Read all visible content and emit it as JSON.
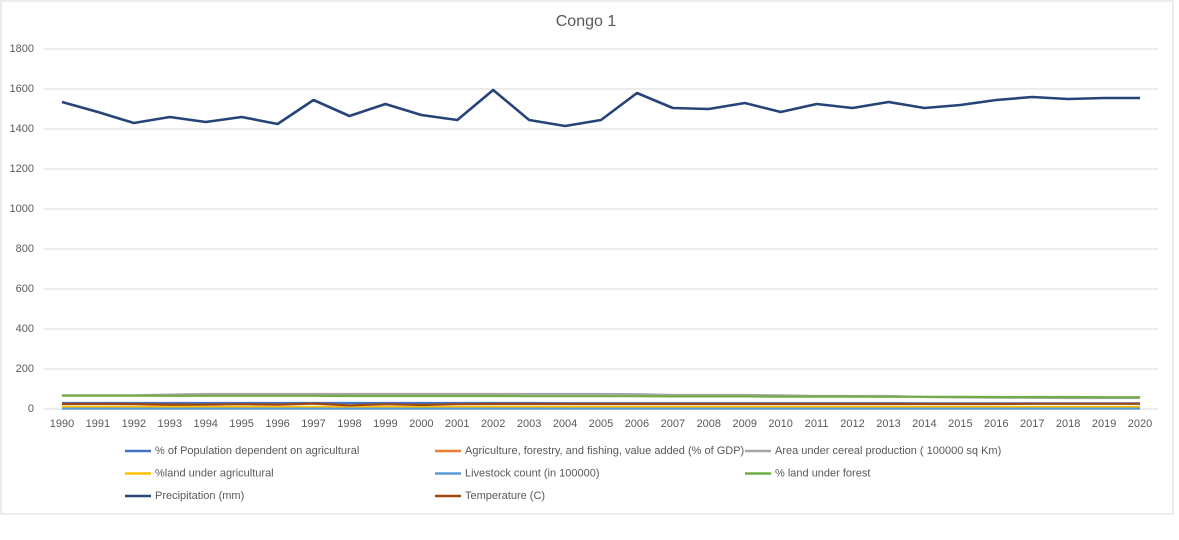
{
  "chart_data": {
    "type": "line",
    "title": "Congo 1",
    "categories": [
      "1990",
      "1991",
      "1992",
      "1993",
      "1994",
      "1995",
      "1996",
      "1997",
      "1998",
      "1999",
      "2000",
      "2001",
      "2002",
      "2003",
      "2004",
      "2005",
      "2006",
      "2007",
      "2008",
      "2009",
      "2010",
      "2011",
      "2012",
      "2013",
      "2014",
      "2015",
      "2016",
      "2017",
      "2018",
      "2019",
      "2020"
    ],
    "ylim": [
      0,
      1800
    ],
    "yticks": [
      0,
      200,
      400,
      600,
      800,
      1000,
      1200,
      1400,
      1600,
      1800
    ],
    "grid": true,
    "series": [
      {
        "name": "% of Population dependent on agricultural",
        "color": "#4472c4",
        "values": [
          30,
          30,
          30,
          30,
          30,
          30,
          30,
          30,
          30,
          30,
          30,
          30,
          30,
          30,
          29,
          29,
          29,
          29,
          29,
          29,
          29,
          29,
          29,
          29,
          28,
          28,
          28,
          28,
          28,
          28,
          28
        ]
      },
      {
        "name": "Agriculture, forestry, and fishing, value added (% of GDP)",
        "color": "#ed7d31",
        "values": [
          10,
          9,
          11,
          12,
          10,
          9,
          10,
          8,
          9,
          10,
          6,
          5,
          5,
          6,
          5,
          5,
          5,
          5,
          5,
          5,
          5,
          6,
          6,
          6,
          7,
          8,
          8,
          9,
          9,
          9,
          10
        ]
      },
      {
        "name": "Area under cereal production ( 100000 sq Km)",
        "color": "#a5a5a5",
        "values": [
          68,
          68,
          68,
          72,
          75,
          75,
          75,
          75,
          75,
          75,
          75,
          75,
          75,
          75,
          75,
          75,
          74,
          70,
          70,
          70,
          68,
          65,
          65,
          65,
          60,
          58,
          57,
          56,
          55,
          55,
          55
        ]
      },
      {
        "name": "%land under agricultural",
        "color": "#ffc000",
        "values": [
          10,
          10,
          10,
          10,
          10,
          10,
          10,
          10,
          10,
          10,
          10,
          10,
          10,
          10,
          10,
          10,
          10,
          10,
          10,
          10,
          10,
          10,
          10,
          10,
          10,
          10,
          10,
          10,
          10,
          10,
          10
        ]
      },
      {
        "name": "Livestock count (in 100000)",
        "color": "#5b9bd5",
        "values": [
          2,
          2,
          2,
          2,
          2,
          2,
          2,
          2,
          2,
          2,
          2,
          2,
          2,
          2,
          2,
          2,
          2,
          2,
          2,
          2,
          2,
          2,
          2,
          2,
          2,
          2,
          2,
          2,
          2,
          2,
          2
        ]
      },
      {
        "name": "% land under forest",
        "color": "#70ad47",
        "values": [
          67,
          67,
          67,
          66,
          66,
          66,
          66,
          66,
          65,
          65,
          65,
          65,
          65,
          64,
          64,
          64,
          64,
          63,
          63,
          63,
          62,
          62,
          62,
          61,
          61,
          61,
          60,
          60,
          60,
          59,
          59
        ]
      },
      {
        "name": "Precipitation (mm)",
        "color": "#264478",
        "values": [
          1535,
          1485,
          1430,
          1460,
          1435,
          1460,
          1425,
          1545,
          1465,
          1525,
          1470,
          1445,
          1595,
          1445,
          1415,
          1445,
          1580,
          1505,
          1500,
          1530,
          1485,
          1525,
          1505,
          1535,
          1505,
          1520,
          1545,
          1560,
          1550,
          1555,
          1555
        ]
      },
      {
        "name": "Temperature (C)",
        "color": "#9e480e",
        "values": [
          25,
          25,
          25,
          22,
          22,
          24,
          22,
          27,
          18,
          24,
          20,
          24,
          25,
          25,
          25,
          25,
          25,
          25,
          25,
          25,
          25,
          25,
          25,
          25,
          25,
          25,
          25,
          26,
          26,
          26,
          26
        ]
      }
    ]
  }
}
